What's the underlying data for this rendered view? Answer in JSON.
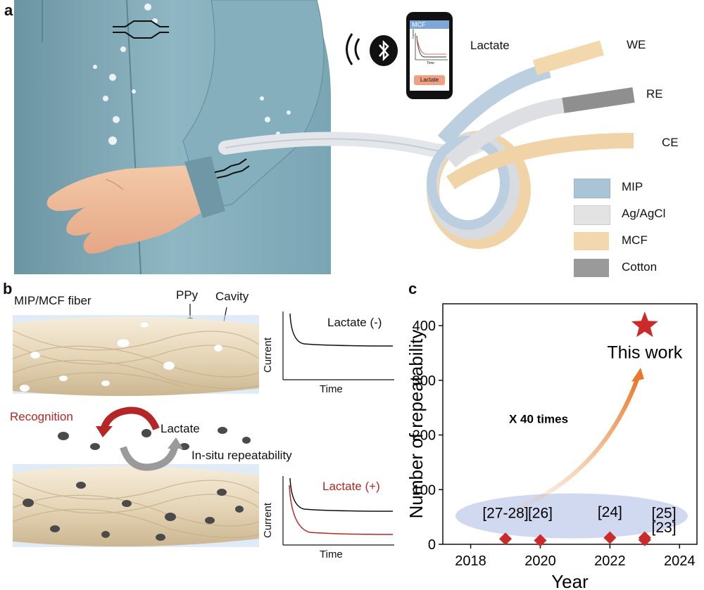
{
  "panel_a": {
    "letter": "a",
    "phone": {
      "app_title": "MCF",
      "axis_y": "Current",
      "axis_x": "Time",
      "button_label": "Lactate"
    },
    "lactate_label": "Lactate",
    "electrodes": [
      "WE",
      "RE",
      "CE"
    ],
    "legend": [
      {
        "label": "MIP",
        "color": "#a9c4d6"
      },
      {
        "label": "Ag/AgCl",
        "color": "#dcdcdc"
      },
      {
        "label": "MCF",
        "color": "#f3d8ad"
      },
      {
        "label": "Cotton",
        "color": "#9a9a9a"
      }
    ]
  },
  "panel_b": {
    "letter": "b",
    "fiber_title": "MIP/MCF fiber",
    "ppy": "PPy",
    "cavity": "Cavity",
    "recognition": "Recognition",
    "lactate": "Lactate",
    "in_situ": "In-situ repeatability",
    "plot_top": {
      "label": "Lactate (-)",
      "ylabel": "Current",
      "xlabel": "Time"
    },
    "plot_bottom": {
      "label": "Lactate (+)",
      "ylabel": "Current",
      "xlabel": "Time"
    }
  },
  "panel_c": {
    "letter": "c",
    "arrow_label": "X 40 times",
    "this_work": "This work",
    "chart_data": {
      "type": "scatter",
      "xlabel": "Year",
      "ylabel": "Number of repeatability",
      "xlim": [
        2017.2,
        2024.5
      ],
      "ylim": [
        0,
        440
      ],
      "xticks": [
        2018,
        2020,
        2022,
        2024
      ],
      "yticks": [
        0,
        100,
        200,
        300,
        400
      ],
      "points": [
        {
          "x": 2019,
          "y": 10,
          "label": "[27-28]"
        },
        {
          "x": 2020,
          "y": 7,
          "label": "[26]"
        },
        {
          "x": 2022,
          "y": 12,
          "label": "[24]"
        },
        {
          "x": 2023,
          "y": 12,
          "label": "[25]"
        },
        {
          "x": 2023,
          "y": 8,
          "label": "[23]"
        }
      ],
      "this_work_point": {
        "x": 2023,
        "y": 400
      },
      "marker_color": "#cc2a2a"
    }
  }
}
